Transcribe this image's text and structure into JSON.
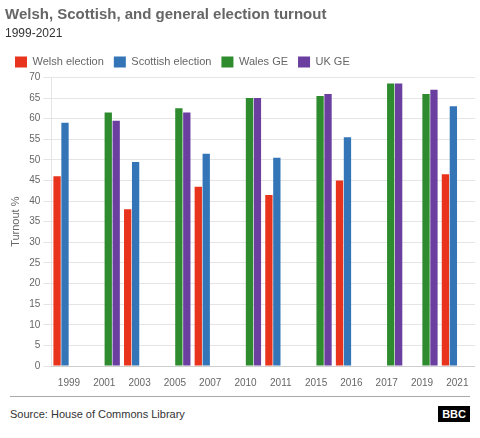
{
  "chart_data": {
    "type": "bar",
    "title": "Welsh, Scottish, and general election turnout",
    "subtitle": "1999-2021",
    "y_label": "Turnout %",
    "annotations": [
      "Source: House of Commons Library",
      "BBC"
    ],
    "categories": [
      "1999",
      "2001",
      "2003",
      "2005",
      "2007",
      "2010",
      "2011",
      "2015",
      "2016",
      "2017",
      "2019",
      "2021"
    ],
    "series": [
      {
        "name": "Welsh election",
        "color": "#e8341c",
        "values": [
          46.0,
          null,
          38.0,
          null,
          43.5,
          null,
          41.5,
          null,
          45.0,
          null,
          null,
          46.5
        ]
      },
      {
        "name": "Scottish election",
        "color": "#3475b8",
        "values": [
          59.0,
          null,
          49.5,
          null,
          51.5,
          null,
          50.5,
          null,
          55.5,
          null,
          null,
          63.0
        ]
      },
      {
        "name": "Wales GE",
        "color": "#2e8b2e",
        "values": [
          null,
          61.5,
          null,
          62.5,
          null,
          65.0,
          null,
          65.5,
          null,
          68.5,
          66.0,
          null
        ]
      },
      {
        "name": "UK GE",
        "color": "#6b3fa0",
        "values": [
          null,
          59.5,
          null,
          61.5,
          null,
          65.0,
          null,
          66.0,
          null,
          68.5,
          67.0,
          null
        ]
      }
    ],
    "ylim": [
      0,
      70
    ],
    "yticks": [
      0,
      5,
      10,
      15,
      20,
      25,
      30,
      35,
      40,
      45,
      50,
      55,
      60,
      65,
      70
    ],
    "grid": true,
    "legend": "upper left"
  }
}
